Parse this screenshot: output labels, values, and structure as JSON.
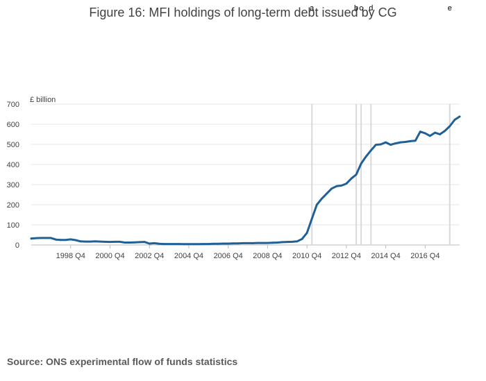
{
  "chart_data": {
    "type": "line",
    "title": "Figure 16: MFI holdings of long-term debt issued by CG",
    "ylabel": "£ billion",
    "xlabel": "",
    "ylim": [
      0,
      700
    ],
    "yticks": [
      0,
      100,
      200,
      300,
      400,
      500,
      600,
      700
    ],
    "xticks": [
      "1998 Q4",
      "2000 Q4",
      "2002 Q4",
      "2004 Q4",
      "2006 Q4",
      "2008 Q4",
      "2010 Q4",
      "2012 Q4",
      "2014 Q4",
      "2016 Q4"
    ],
    "xtick_index": [
      8,
      16,
      24,
      32,
      40,
      48,
      56,
      64,
      72,
      80
    ],
    "series": [
      {
        "name": "MFI holdings of long-term debt issued by CG",
        "color": "#206095",
        "values": [
          32,
          34,
          35,
          35,
          35,
          27,
          25,
          25,
          28,
          24,
          18,
          17,
          17,
          18,
          17,
          16,
          15,
          16,
          16,
          12,
          12,
          13,
          14,
          15,
          7,
          9,
          6,
          5,
          5,
          5,
          5,
          4,
          4,
          4,
          4,
          5,
          5,
          6,
          6,
          7,
          7,
          8,
          8,
          9,
          9,
          9,
          10,
          10,
          10,
          11,
          12,
          14,
          15,
          16,
          18,
          30,
          60,
          130,
          200,
          230,
          255,
          280,
          292,
          295,
          305,
          330,
          350,
          405,
          440,
          470,
          498,
          500,
          510,
          498,
          505,
          510,
          512,
          516,
          518,
          563,
          555,
          542,
          558,
          550,
          567,
          590,
          622,
          638
        ]
      }
    ],
    "annotations": [
      {
        "label": "a",
        "index": 57
      },
      {
        "label": "b",
        "index": 66
      },
      {
        "label": "c",
        "index": 67
      },
      {
        "label": "d",
        "index": 69
      },
      {
        "label": "e",
        "index": 85
      }
    ],
    "annotation_line_color": "#d9d9d9"
  },
  "source": "Source: ONS experimental flow of funds statistics"
}
